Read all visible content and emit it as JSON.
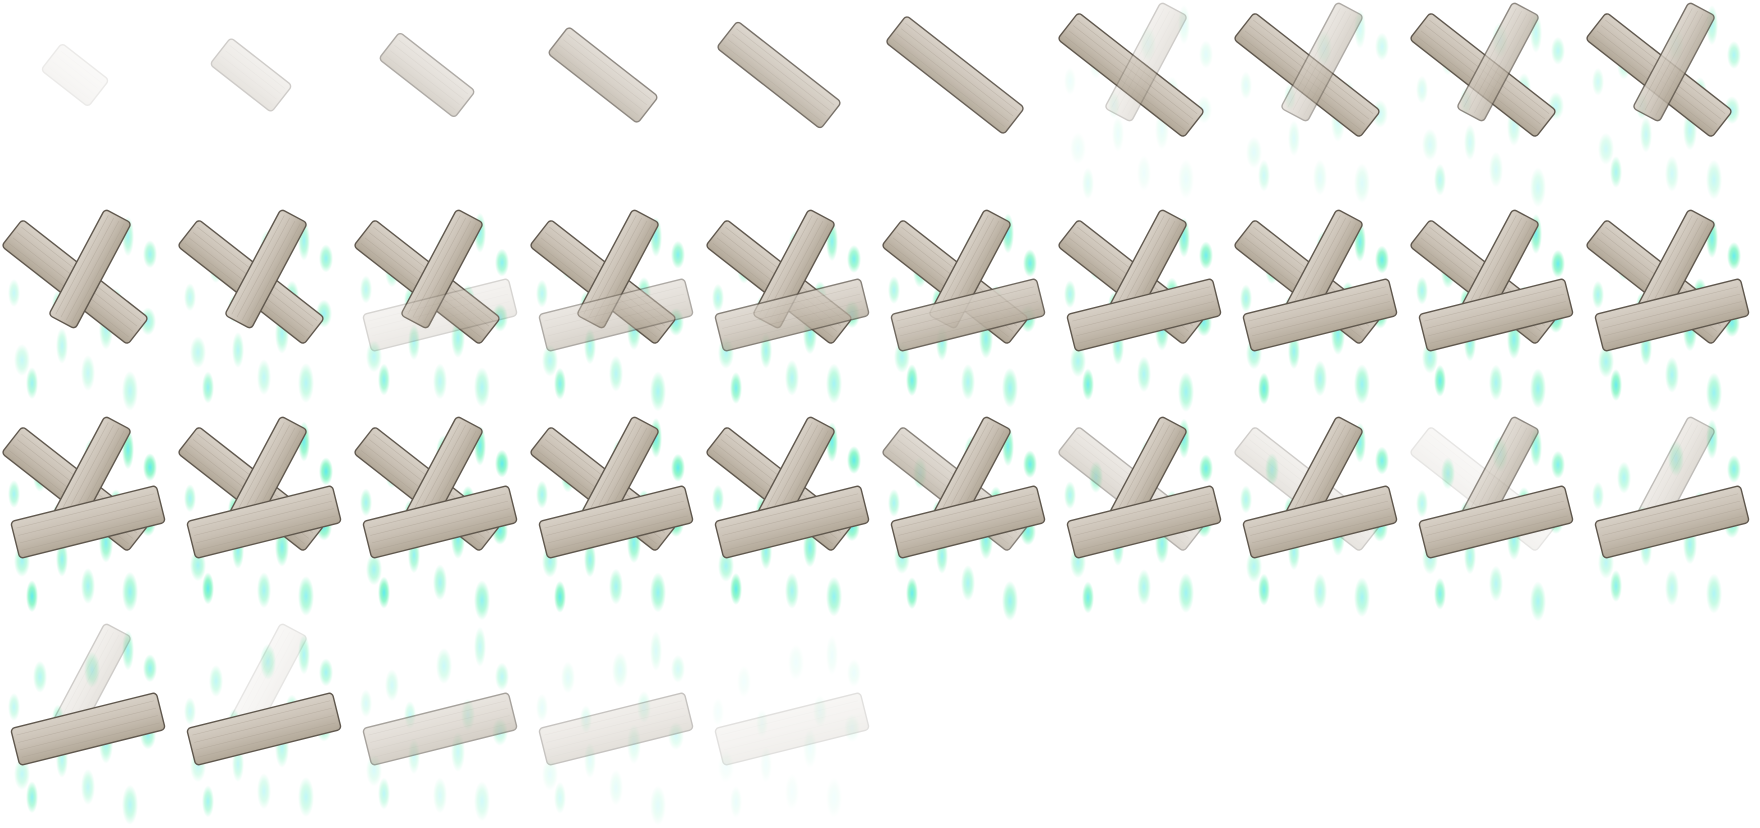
{
  "sprite_sheet": {
    "columns": 10,
    "rows": 4,
    "frame_count": 35,
    "colors": {
      "bandage_fill": "#c9c0b4",
      "bandage_edge": "#5f574d",
      "bandage_stripe": "#a89e91",
      "particle_green": "#3ef0a0",
      "particle_cyan": "#45e8f0",
      "background": "#ffffff"
    },
    "strip_opacity_by_frame": {
      "strip_a": [
        0.12,
        0.3,
        0.5,
        0.7,
        0.85,
        0.95,
        1,
        1,
        1,
        1,
        1,
        1,
        1,
        1,
        1,
        1,
        1,
        1,
        1,
        1,
        1,
        1,
        1,
        1,
        1,
        0.75,
        0.45,
        0.3,
        0.15,
        0,
        0,
        0,
        0,
        0,
        0
      ],
      "strip_b": [
        0,
        0,
        0,
        0,
        0,
        0,
        0.3,
        0.5,
        0.7,
        0.85,
        1,
        1,
        1,
        1,
        1,
        1,
        1,
        1,
        1,
        1,
        1,
        1,
        1,
        1,
        1,
        1,
        1,
        1,
        0.7,
        0.4,
        0.3,
        0.15,
        0,
        0,
        0
      ],
      "strip_c": [
        0,
        0,
        0,
        0,
        0,
        0,
        0,
        0,
        0,
        0,
        0,
        0,
        0.25,
        0.5,
        0.75,
        0.9,
        1,
        1,
        1,
        1,
        1,
        1,
        1,
        1,
        1,
        1,
        1,
        1,
        1,
        1,
        1,
        1,
        0.55,
        0.35,
        0.18
      ]
    },
    "particle_opacity_by_frame": [
      0,
      0,
      0,
      0,
      0,
      0,
      0.18,
      0.3,
      0.4,
      0.5,
      0.6,
      0.65,
      0.7,
      0.75,
      0.8,
      0.85,
      0.85,
      0.9,
      0.9,
      0.9,
      0.95,
      0.95,
      0.95,
      0.95,
      0.95,
      0.9,
      0.85,
      0.8,
      0.75,
      0.7,
      0.65,
      0.55,
      0.4,
      0.25,
      0.12
    ]
  }
}
